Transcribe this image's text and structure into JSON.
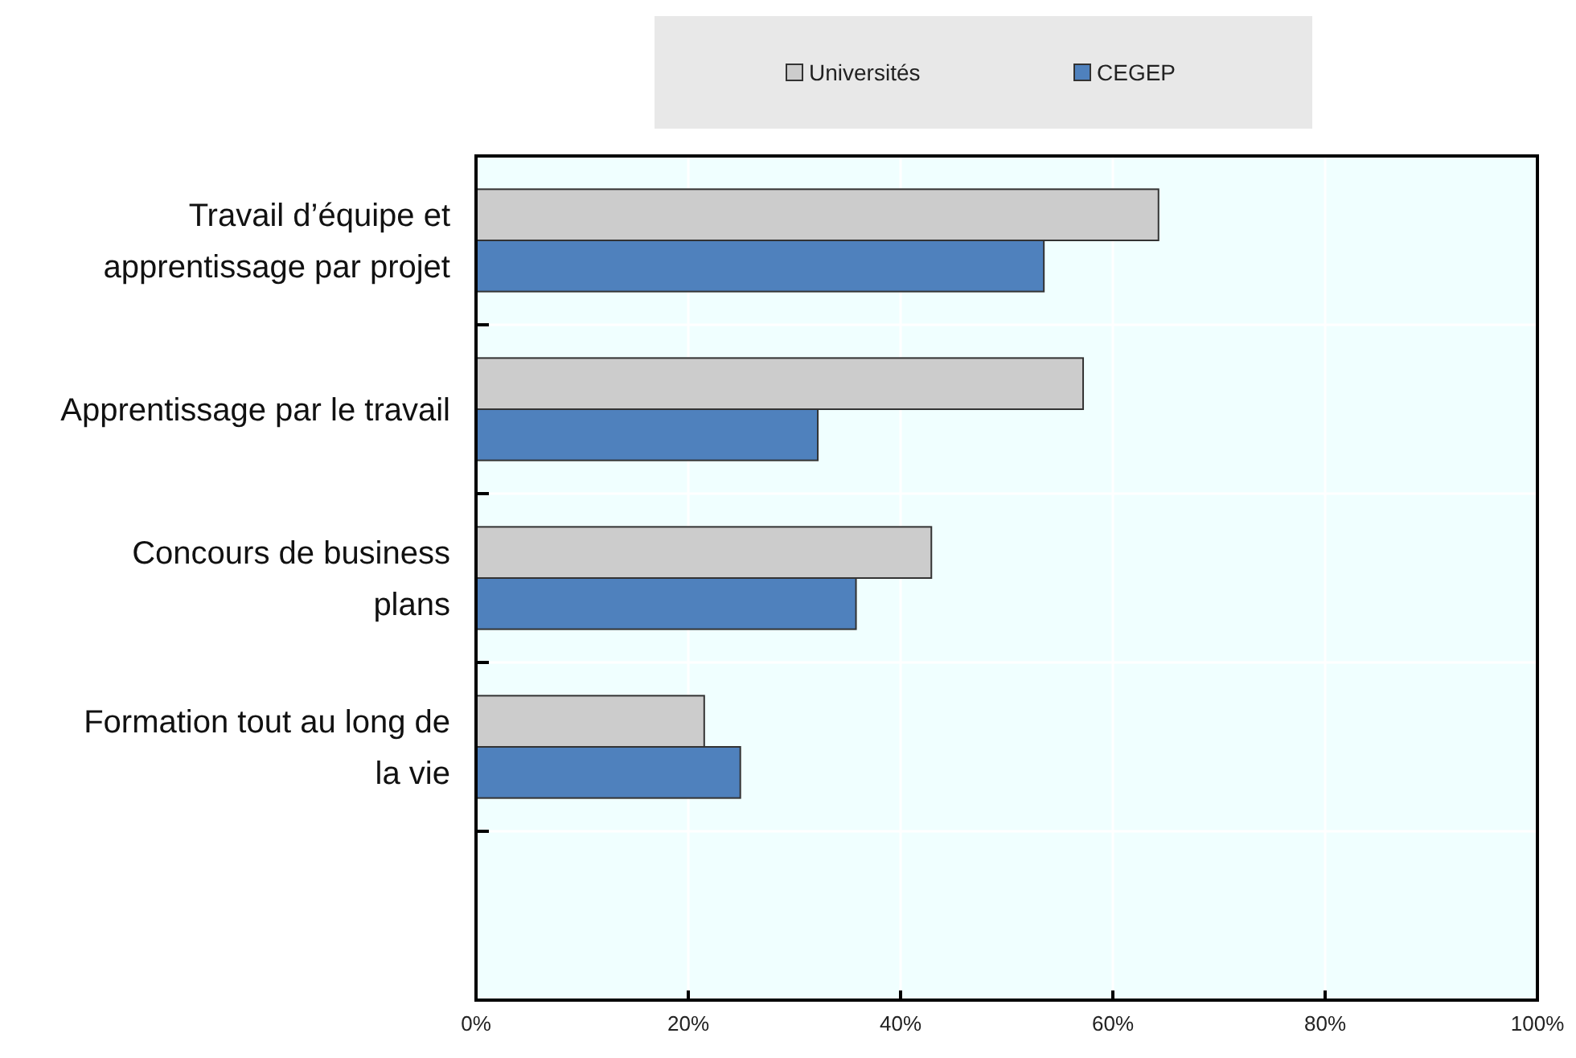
{
  "chart_data": {
    "type": "bar",
    "orientation": "horizontal",
    "categories": [
      "Travail d’équipe et apprentissage par projet",
      "Apprentissage par le travail",
      "Concours de business plans",
      "Formation tout au long de la vie",
      null
    ],
    "series": [
      {
        "name": "Universités",
        "color": "#cccccc",
        "values": [
          64.3,
          57.2,
          42.9,
          21.5,
          null
        ]
      },
      {
        "name": "CEGEP",
        "color": "#4f81bd",
        "values": [
          53.5,
          32.2,
          35.8,
          24.9,
          null
        ]
      }
    ],
    "xlim": [
      0,
      100
    ],
    "xticks": [
      {
        "value": 0,
        "label": "0%"
      },
      {
        "value": 20,
        "label": "20%"
      },
      {
        "value": 40,
        "label": "40%"
      },
      {
        "value": 60,
        "label": "60%"
      },
      {
        "value": 80,
        "label": "80%"
      },
      {
        "value": 100,
        "label": "100%"
      }
    ],
    "grid": true,
    "legend": "top"
  }
}
